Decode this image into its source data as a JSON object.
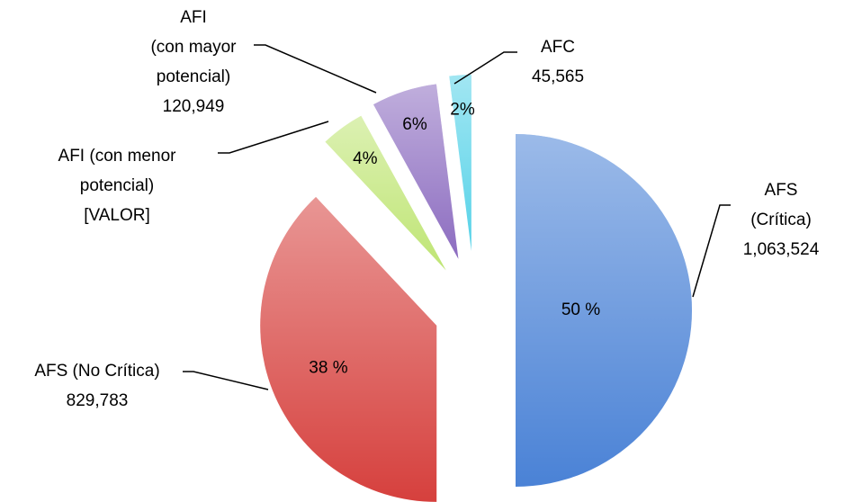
{
  "chart_data": {
    "type": "pie",
    "categories": [
      "AFS\n(Crítica)",
      "AFS (No Crítica)",
      "AFI (con menor\npotencial)",
      "AFI\n(con mayor\npotencial)",
      "AFC"
    ],
    "values": [
      50,
      38,
      4,
      6,
      2
    ],
    "value_labels": [
      "50 %",
      "38 %",
      "4%",
      "6%",
      "2%"
    ],
    "amounts": [
      1063524,
      829783,
      null,
      120949,
      45565
    ],
    "amount_labels": [
      "1,063,524",
      "829,783",
      "[VALOR]",
      "120,949",
      "45,565"
    ],
    "colors": [
      "#4a82d6",
      "#d6403d",
      "#bfe574",
      "#8c6cc0",
      "#55d2e8"
    ]
  }
}
